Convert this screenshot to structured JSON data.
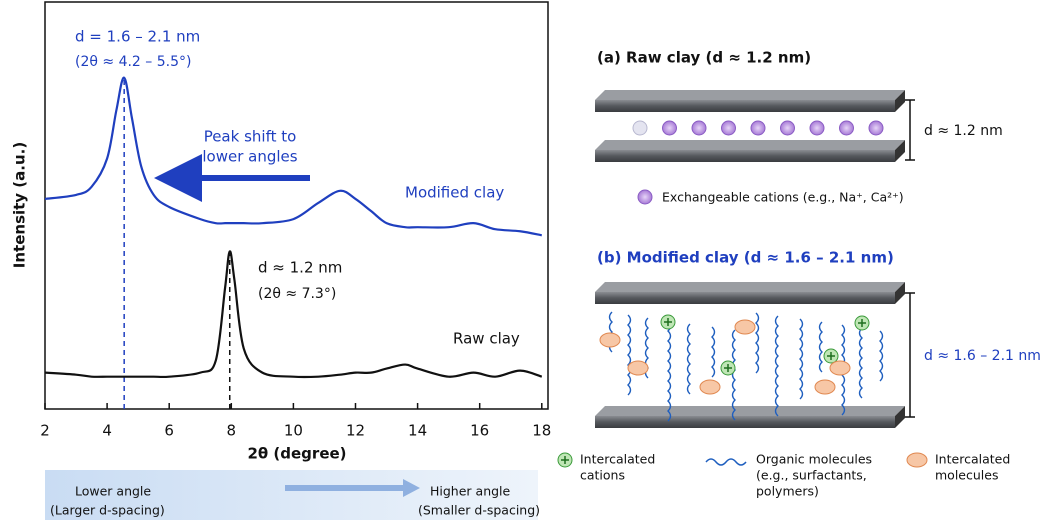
{
  "chart_data": {
    "type": "line",
    "y_label": "Intensity (a.u.)",
    "x_label": "2θ (degree)",
    "x": [
      2,
      3,
      3.5,
      4,
      4.3,
      4.55,
      4.8,
      5.1,
      5.5,
      6,
      7,
      7.5,
      7.8,
      7.95,
      8.1,
      8.4,
      9,
      10,
      10.8,
      11.5,
      12,
      12.5,
      13,
      13.6,
      14,
      15,
      15.8,
      16.5,
      17.3,
      18
    ],
    "series": [
      {
        "name": "Modified clay",
        "color": "#1f3fbf",
        "peak_x": 4.55,
        "values": [
          52,
          53,
          55,
          62,
          74,
          82,
          72,
          60,
          53,
          50,
          47,
          46,
          46,
          46,
          46,
          46,
          46,
          47,
          51,
          54,
          52,
          49,
          46,
          45,
          45,
          45,
          46,
          44.5,
          44,
          43
        ]
      },
      {
        "name": "Raw clay",
        "color": "#111111",
        "peak_x": 7.95,
        "values": [
          9,
          8.5,
          8,
          8,
          8,
          8,
          8,
          8,
          8,
          8,
          9,
          12,
          30,
          39,
          32,
          15,
          9,
          8,
          8,
          8.5,
          9,
          9,
          10,
          11,
          10,
          8,
          9,
          8,
          9.5,
          8
        ]
      }
    ],
    "xlim": [
      2,
      18.2
    ],
    "xticks": [
      2,
      4,
      6,
      8,
      10,
      12,
      14,
      16,
      18
    ],
    "ylim": [
      0,
      100
    ],
    "annotations": {
      "modified_d": "d = 1.6 – 2.1 nm",
      "modified_angle": "(2θ ≈ 4.2 – 5.5°)",
      "shift_1": "Peak shift to",
      "shift_2": "lower angles",
      "raw_d": "d ≈ 1.2 nm",
      "raw_angle": "(2θ ≈ 7.3°)"
    },
    "scale_bar": {
      "left_1": "Lower angle",
      "left_2": "(Larger d-spacing)",
      "right_1": "Higher angle",
      "right_2": "(Smaller d-spacing)"
    }
  },
  "diagram": {
    "raw_title": "(a) Raw clay (d ≈ 1.2 nm)",
    "raw_d": "d ≈ 1.2 nm",
    "raw_legend": "Exchangeable cations (e.g., Na⁺, Ca²⁺)",
    "modified_title": "(b) Modified clay (d ≈ 1.6 – 2.1 nm)",
    "modified_d": "d ≈ 1.6 – 2.1 nm",
    "legend": {
      "cations": [
        "Intercalated",
        "cations"
      ],
      "organic": [
        "Organic molecules",
        "(e.g., surfactants,",
        "polymers)"
      ],
      "molecules": [
        "Intercalated",
        "molecules"
      ]
    }
  }
}
